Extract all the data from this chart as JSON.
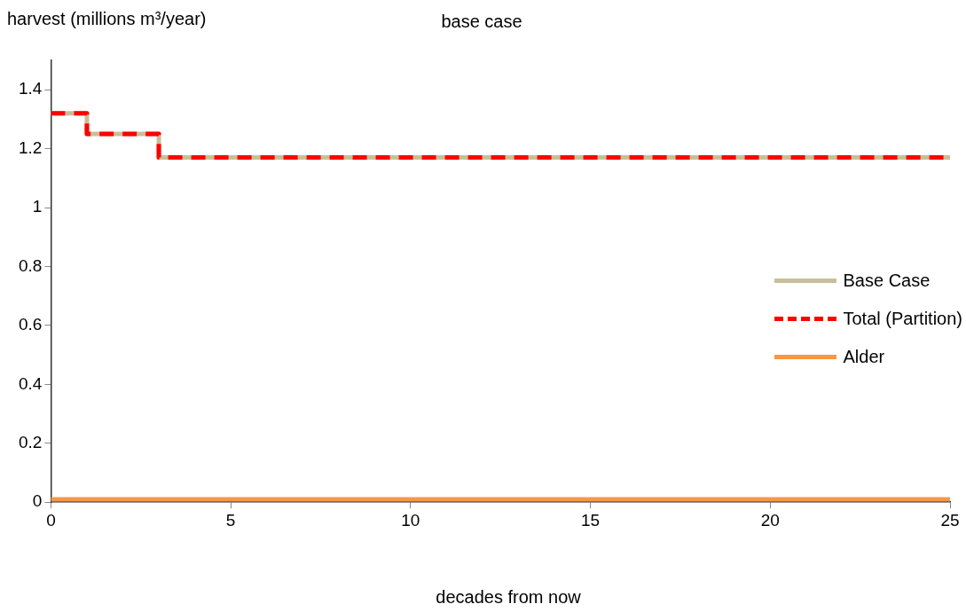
{
  "chart_data": {
    "type": "step",
    "title": "base case",
    "ylabel": "harvest (millions m³/year)",
    "xlabel": "decades from now",
    "xlim": [
      0,
      25
    ],
    "xticks": [
      0,
      5,
      10,
      15,
      20,
      25
    ],
    "ylim": [
      0,
      1.5
    ],
    "yticks": [
      0,
      0.2,
      0.4,
      0.6,
      0.8,
      1,
      1.2,
      1.4
    ],
    "grid": false,
    "legend": "right",
    "marker": "none",
    "series": [
      {
        "name": "Base Case",
        "color": "#c8bf9a",
        "x": [
          0,
          1,
          3,
          25
        ],
        "values": [
          1.32,
          1.25,
          1.17,
          1.17
        ],
        "line_style": "solid"
      },
      {
        "name": "Total (Partition)",
        "color": "#ff0000",
        "x": [
          0,
          1,
          3,
          25
        ],
        "values": [
          1.32,
          1.25,
          1.17,
          1.17
        ],
        "line_style": "dashed"
      },
      {
        "name": "Alder",
        "color": "#f79646",
        "x": [
          0,
          25
        ],
        "values": [
          0.01,
          0.01
        ],
        "line_style": "solid"
      }
    ]
  }
}
